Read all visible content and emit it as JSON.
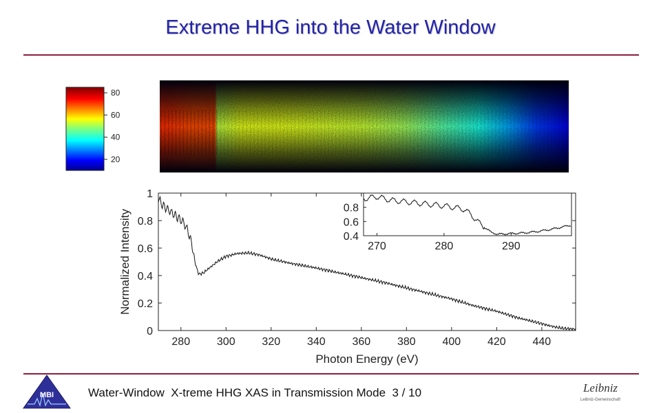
{
  "slide": {
    "title": "Extreme HHG into the Water Window",
    "footer": "Water-Window  X-treme HHG XAS in Transmission Mode  3 / 10",
    "left_logo_text": "MBI",
    "right_logo_text": "Leibniz",
    "right_logo_subtext": "Leibniz-Gemeinschaft",
    "accent_color": "#8a1e3c",
    "title_color": "#2323a8"
  },
  "chart_data": [
    {
      "type": "heatmap",
      "title": "",
      "colormap": "jet",
      "colorbar": {
        "ticks": [
          20,
          40,
          60,
          80
        ],
        "range": [
          10,
          85
        ]
      },
      "profile": [
        [
          0.0,
          72
        ],
        [
          0.02,
          72
        ],
        [
          0.08,
          70
        ],
        [
          0.135,
          70
        ],
        [
          0.14,
          52
        ],
        [
          0.2,
          55
        ],
        [
          0.3,
          55
        ],
        [
          0.4,
          54
        ],
        [
          0.5,
          53
        ],
        [
          0.6,
          50
        ],
        [
          0.7,
          44
        ],
        [
          0.78,
          40
        ],
        [
          0.85,
          32
        ],
        [
          0.92,
          24
        ],
        [
          1.0,
          18
        ]
      ]
    },
    {
      "type": "line",
      "title": "",
      "xlabel": "Photon Energy (eV)",
      "ylabel": "Normalized Intensity",
      "xlim": [
        270,
        455
      ],
      "ylim": [
        0,
        1
      ],
      "xticks": [
        280,
        300,
        320,
        340,
        360,
        380,
        400,
        420,
        440
      ],
      "yticks": [
        0,
        0.2,
        0.4,
        0.6,
        0.8,
        1
      ],
      "grid": false,
      "series": [
        {
          "name": "",
          "points": [
            [
              270,
              0.96
            ],
            [
              272,
              0.91
            ],
            [
              275,
              0.87
            ],
            [
              278,
              0.83
            ],
            [
              281,
              0.79
            ],
            [
              283,
              0.73
            ],
            [
              285,
              0.62
            ],
            [
              286,
              0.52
            ],
            [
              287,
              0.45
            ],
            [
              288,
              0.41
            ],
            [
              290,
              0.42
            ],
            [
              293,
              0.46
            ],
            [
              296,
              0.5
            ],
            [
              300,
              0.54
            ],
            [
              305,
              0.56
            ],
            [
              310,
              0.565
            ],
            [
              315,
              0.55
            ],
            [
              320,
              0.52
            ],
            [
              330,
              0.485
            ],
            [
              340,
              0.455
            ],
            [
              350,
              0.42
            ],
            [
              360,
              0.385
            ],
            [
              370,
              0.35
            ],
            [
              380,
              0.31
            ],
            [
              390,
              0.27
            ],
            [
              400,
              0.23
            ],
            [
              410,
              0.18
            ],
            [
              420,
              0.14
            ],
            [
              430,
              0.09
            ],
            [
              440,
              0.05
            ],
            [
              446,
              0.025
            ],
            [
              450,
              0.015
            ],
            [
              455,
              0.01
            ]
          ]
        }
      ],
      "inset": {
        "xlim": [
          268,
          299
        ],
        "ylim": [
          0.4,
          1.0
        ],
        "xticks": [
          270,
          280,
          290
        ],
        "yticks": [
          0.4,
          0.6,
          0.8
        ],
        "points": [
          [
            268,
            0.92
          ],
          [
            270,
            0.95
          ],
          [
            272,
            0.9
          ],
          [
            274,
            0.88
          ],
          [
            276,
            0.86
          ],
          [
            278,
            0.84
          ],
          [
            280,
            0.82
          ],
          [
            282,
            0.79
          ],
          [
            283,
            0.77
          ],
          [
            284,
            0.7
          ],
          [
            285,
            0.6
          ],
          [
            286,
            0.52
          ],
          [
            287,
            0.45
          ],
          [
            288,
            0.42
          ],
          [
            290,
            0.43
          ],
          [
            292,
            0.44
          ],
          [
            294,
            0.46
          ],
          [
            296,
            0.49
          ],
          [
            298,
            0.53
          ],
          [
            299,
            0.55
          ]
        ]
      }
    }
  ]
}
